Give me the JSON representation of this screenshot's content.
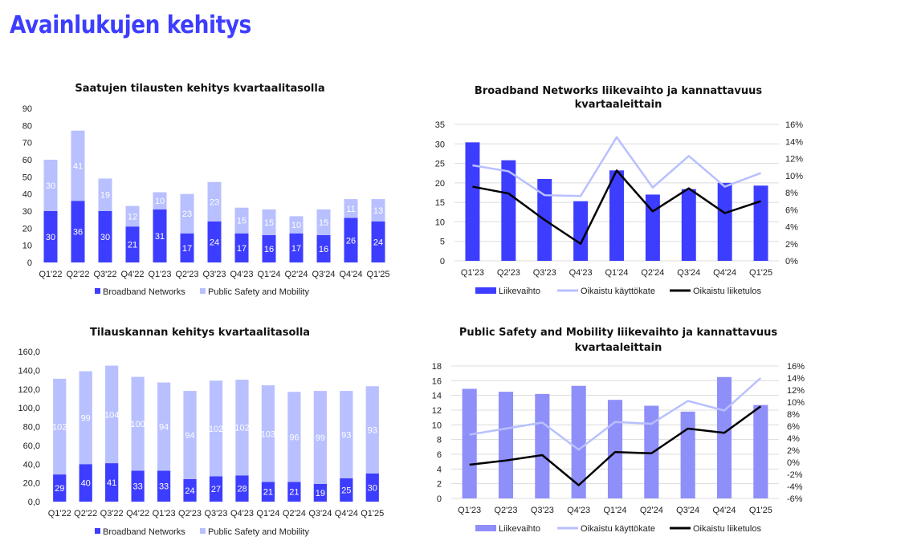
{
  "page": {
    "title": "Avainlukujen kehitys"
  },
  "colors": {
    "bn": "#3d3dff",
    "psm": "#b8c0ff",
    "psm_bar": "#8f8ffa",
    "line_light": "#b8c0ff",
    "line_dark": "#000000",
    "title": "#3d3dff"
  },
  "chart_data": [
    {
      "id": "orders",
      "type": "bar",
      "stacked": true,
      "title": "Saatujen tilausten kehitys kvartaalitasolla",
      "categories": [
        "Q1'22",
        "Q2'22",
        "Q3'22",
        "Q4'22",
        "Q1'23",
        "Q2'23",
        "Q3'23",
        "Q4'23",
        "Q1'24",
        "Q2'24",
        "Q3'24",
        "Q4'24",
        "Q1'25"
      ],
      "series": [
        {
          "name": "Broadband Networks",
          "values": [
            30,
            36,
            30,
            21,
            31,
            17,
            24,
            17,
            16,
            17,
            16,
            26,
            24
          ],
          "labels": [
            "30",
            "36",
            "30",
            "21",
            "31",
            "17",
            "24",
            "17",
            "16",
            "17",
            "16",
            "26",
            "24"
          ]
        },
        {
          "name": "Public Safety and Mobility",
          "values": [
            30,
            41,
            19,
            12,
            10,
            23,
            23,
            15,
            15,
            10,
            15,
            11,
            13
          ],
          "labels": [
            "30",
            "41",
            "19",
            "12",
            "10",
            "23",
            "23",
            "15",
            "15",
            "10",
            "15",
            "11",
            "13"
          ]
        }
      ],
      "ylim": [
        0,
        90
      ],
      "yticks": [
        "0",
        "10",
        "20",
        "30",
        "40",
        "50",
        "60",
        "70",
        "80",
        "90"
      ],
      "legend": "bottom"
    },
    {
      "id": "bn_revenue",
      "type": "bar+line",
      "title": "Broadband Networks liikevaihto ja kannattavuus kvartaaleittain",
      "title_lines": [
        "Broadband Networks liikevaihto ja kannattavuus",
        "kvartaaleittain"
      ],
      "categories": [
        "Q1'23",
        "Q2'23",
        "Q3'23",
        "Q4'23",
        "Q1'24",
        "Q2'24",
        "Q3'24",
        "Q4'24",
        "Q1'25"
      ],
      "bars": {
        "name": "Liikevaihto",
        "values": [
          30.4,
          25.8,
          21.0,
          15.3,
          23.2,
          17.0,
          18.4,
          20.0,
          19.3
        ]
      },
      "lines": [
        {
          "name": "Oikaistu käyttökate",
          "values": [
            11.2,
            10.5,
            7.7,
            7.6,
            14.5,
            8.6,
            12.3,
            8.7,
            10.3
          ]
        },
        {
          "name": "Oikaistu liiketulos",
          "values": [
            8.7,
            7.9,
            4.8,
            2.0,
            10.6,
            5.8,
            8.5,
            5.6,
            7.0
          ]
        }
      ],
      "ylim": [
        0,
        35
      ],
      "yticks": [
        "0",
        "5",
        "10",
        "15",
        "20",
        "25",
        "30",
        "35"
      ],
      "y2lim": [
        0,
        16
      ],
      "y2ticks": [
        "0%",
        "2%",
        "4%",
        "6%",
        "8%",
        "10%",
        "12%",
        "14%",
        "16%"
      ],
      "legend": "bottom"
    },
    {
      "id": "backlog",
      "type": "bar",
      "stacked": true,
      "title": "Tilauskannan kehitys kvartaalitasolla",
      "categories": [
        "Q1'22",
        "Q2'22",
        "Q3'22",
        "Q4'22",
        "Q1'23",
        "Q2'23",
        "Q3'23",
        "Q4'23",
        "Q1'24",
        "Q2'24",
        "Q3'24",
        "Q4'24",
        "Q1'25"
      ],
      "series": [
        {
          "name": "Broadband Networks",
          "values": [
            29,
            40,
            41,
            33,
            33,
            24,
            27,
            28,
            21,
            21,
            19,
            25,
            30
          ],
          "labels": [
            "29",
            "40",
            "41",
            "33",
            "33",
            "24",
            "27",
            "28",
            "21",
            "21",
            "19",
            "25",
            "30"
          ]
        },
        {
          "name": "Public Safety and Mobility",
          "values": [
            102,
            99,
            104,
            100,
            94,
            94,
            102,
            102,
            103,
            96,
            99,
            93,
            93
          ],
          "labels": [
            "102",
            "99",
            "104",
            "100",
            "94",
            "94",
            "102",
            "102",
            "103",
            "96",
            "99",
            "93",
            "93"
          ]
        }
      ],
      "ylim": [
        0,
        160
      ],
      "yticks": [
        "0,0",
        "20,0",
        "40,0",
        "60,0",
        "80,0",
        "100,0",
        "120,0",
        "140,0",
        "160,0"
      ],
      "legend": "bottom"
    },
    {
      "id": "psm_revenue",
      "type": "bar+line",
      "title": "Public Safety and Mobility liikevaihto ja kannattavuus kvartaaleittain",
      "title_lines": [
        "Public Safety and Mobility liikevaihto ja kannattavuus",
        "kvartaaleittain"
      ],
      "categories": [
        "Q1'23",
        "Q2'23",
        "Q3'23",
        "Q4'23",
        "Q1'24",
        "Q2'24",
        "Q3'24",
        "Q4'24",
        "Q1'25"
      ],
      "bars": {
        "name": "Liikevaihto",
        "values": [
          14.9,
          14.5,
          14.2,
          15.3,
          13.4,
          12.6,
          11.8,
          16.5,
          12.7
        ]
      },
      "lines": [
        {
          "name": "Oikaistu käyttökate",
          "values": [
            4.6,
            5.6,
            6.6,
            2.1,
            6.7,
            6.4,
            10.2,
            8.6,
            14.0
          ]
        },
        {
          "name": "Oikaistu liiketulos",
          "values": [
            -0.4,
            0.3,
            1.2,
            -3.8,
            1.7,
            1.5,
            5.6,
            4.9,
            9.3
          ]
        }
      ],
      "ylim": [
        0,
        18
      ],
      "yticks": [
        "0",
        "2",
        "4",
        "6",
        "8",
        "10",
        "12",
        "14",
        "16",
        "18"
      ],
      "y2lim": [
        -6,
        16
      ],
      "y2ticks": [
        "-6%",
        "-4%",
        "-2%",
        "0%",
        "2%",
        "4%",
        "6%",
        "8%",
        "10%",
        "12%",
        "14%",
        "16%"
      ],
      "legend": "bottom"
    }
  ]
}
